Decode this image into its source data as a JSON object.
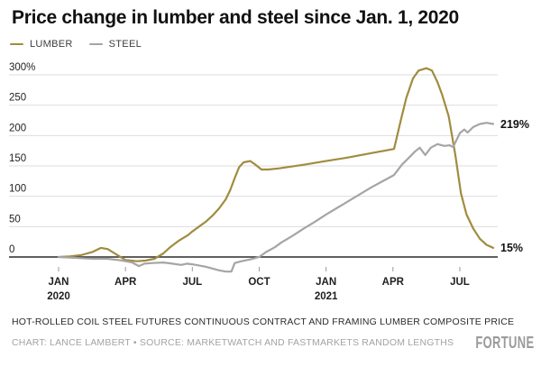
{
  "title": "Price change in lumber and steel since Jan. 1, 2020",
  "legend": [
    {
      "label": "LUMBER",
      "color": "#a08c3f"
    },
    {
      "label": "STEEL",
      "color": "#a5a5a5"
    }
  ],
  "footer": {
    "note": "HOT-ROLLED COIL STEEL FUTURES CONTINUOUS CONTRACT AND FRAMING LUMBER COMPOSITE PRICE",
    "credit": "CHART: LANCE LAMBERT • SOURCE: MARKETWATCH AND FASTMARKETS RANDOM LENGTHS",
    "brand": "FORTUNE"
  },
  "colors": {
    "lumber": "#a08c3f",
    "steel": "#a5a5a5",
    "grid": "#dddddd",
    "zero_axis": "#2b2b2b",
    "tick_mark": "#999999",
    "axis_text": "#1f1f1f",
    "end_label": "#111111"
  },
  "chart_data": {
    "type": "line",
    "title": "Price change in lumber and steel since Jan. 1, 2020",
    "x_unit": "months since Jan 1, 2020",
    "y_unit": "percent change since Jan 1, 2020",
    "ylim": [
      -30,
      320
    ],
    "grid": true,
    "legend_position": "top-left",
    "yticks": [
      {
        "value": 300,
        "label": "300%"
      },
      {
        "value": 250,
        "label": "250"
      },
      {
        "value": 200,
        "label": "200"
      },
      {
        "value": 150,
        "label": "150"
      },
      {
        "value": 100,
        "label": "100"
      },
      {
        "value": 50,
        "label": "50"
      },
      {
        "value": 0,
        "label": "0"
      }
    ],
    "xticks": [
      {
        "pos": 0,
        "label": "JAN",
        "sublabel": "2020"
      },
      {
        "pos": 3,
        "label": "APR",
        "sublabel": ""
      },
      {
        "pos": 6,
        "label": "JUL",
        "sublabel": ""
      },
      {
        "pos": 9,
        "label": "OCT",
        "sublabel": ""
      },
      {
        "pos": 12,
        "label": "JAN",
        "sublabel": "2021"
      },
      {
        "pos": 15,
        "label": "APR",
        "sublabel": ""
      },
      {
        "pos": 18,
        "label": "JUL",
        "sublabel": ""
      }
    ],
    "series": [
      {
        "name": "LUMBER",
        "color": "#a08c3f",
        "end_label": "15%",
        "points": [
          [
            0,
            0
          ],
          [
            0.5,
            1
          ],
          [
            1,
            3
          ],
          [
            1.5,
            8
          ],
          [
            1.9,
            15
          ],
          [
            2.2,
            13
          ],
          [
            2.6,
            4
          ],
          [
            3.0,
            -5
          ],
          [
            3.5,
            -7
          ],
          [
            3.9,
            -6
          ],
          [
            4.3,
            -3
          ],
          [
            4.7,
            6
          ],
          [
            5.0,
            16
          ],
          [
            5.4,
            27
          ],
          [
            5.8,
            36
          ],
          [
            6.0,
            42
          ],
          [
            6.3,
            50
          ],
          [
            6.6,
            58
          ],
          [
            6.9,
            68
          ],
          [
            7.2,
            80
          ],
          [
            7.5,
            95
          ],
          [
            7.7,
            110
          ],
          [
            7.9,
            130
          ],
          [
            8.1,
            148
          ],
          [
            8.3,
            156
          ],
          [
            8.6,
            158
          ],
          [
            8.8,
            153
          ],
          [
            9.1,
            144
          ],
          [
            9.4,
            144
          ],
          [
            9.9,
            146
          ],
          [
            11,
            152
          ],
          [
            12,
            158
          ],
          [
            13,
            164
          ],
          [
            14,
            171
          ],
          [
            15.05,
            178
          ],
          [
            15.35,
            225
          ],
          [
            15.6,
            262
          ],
          [
            15.9,
            294
          ],
          [
            16.15,
            307
          ],
          [
            16.5,
            311
          ],
          [
            16.75,
            307
          ],
          [
            17.0,
            288
          ],
          [
            17.2,
            268
          ],
          [
            17.5,
            232
          ],
          [
            17.8,
            168
          ],
          [
            18.05,
            105
          ],
          [
            18.3,
            70
          ],
          [
            18.6,
            47
          ],
          [
            18.9,
            30
          ],
          [
            19.2,
            20
          ],
          [
            19.5,
            15
          ]
        ]
      },
      {
        "name": "STEEL",
        "color": "#a5a5a5",
        "end_label": "219%",
        "points": [
          [
            0,
            0
          ],
          [
            0.5,
            -1
          ],
          [
            1,
            -2
          ],
          [
            1.6,
            -3
          ],
          [
            2.2,
            -3
          ],
          [
            2.7,
            -5
          ],
          [
            3.0,
            -7
          ],
          [
            3.3,
            -9
          ],
          [
            3.6,
            -15
          ],
          [
            3.85,
            -11
          ],
          [
            4.2,
            -10
          ],
          [
            4.7,
            -9
          ],
          [
            5.1,
            -11
          ],
          [
            5.5,
            -13
          ],
          [
            5.75,
            -11
          ],
          [
            6.0,
            -12
          ],
          [
            6.3,
            -14
          ],
          [
            6.6,
            -16
          ],
          [
            6.9,
            -19
          ],
          [
            7.2,
            -22
          ],
          [
            7.5,
            -24
          ],
          [
            7.75,
            -24
          ],
          [
            7.9,
            -10
          ],
          [
            8.2,
            -7
          ],
          [
            8.6,
            -4
          ],
          [
            9.0,
            0
          ],
          [
            9.3,
            8
          ],
          [
            9.7,
            16
          ],
          [
            10,
            24
          ],
          [
            10.5,
            35
          ],
          [
            11,
            47
          ],
          [
            11.5,
            58
          ],
          [
            12,
            70
          ],
          [
            12.5,
            81
          ],
          [
            13,
            92
          ],
          [
            13.5,
            103
          ],
          [
            14,
            114
          ],
          [
            14.5,
            124
          ],
          [
            15.05,
            135
          ],
          [
            15.4,
            152
          ],
          [
            15.7,
            163
          ],
          [
            16.0,
            174
          ],
          [
            16.2,
            180
          ],
          [
            16.45,
            168
          ],
          [
            16.7,
            180
          ],
          [
            17.0,
            186
          ],
          [
            17.3,
            183
          ],
          [
            17.55,
            184
          ],
          [
            17.7,
            181
          ],
          [
            18.0,
            204
          ],
          [
            18.2,
            210
          ],
          [
            18.35,
            205
          ],
          [
            18.6,
            214
          ],
          [
            18.9,
            219
          ],
          [
            19.2,
            221
          ],
          [
            19.5,
            219
          ]
        ]
      }
    ]
  }
}
